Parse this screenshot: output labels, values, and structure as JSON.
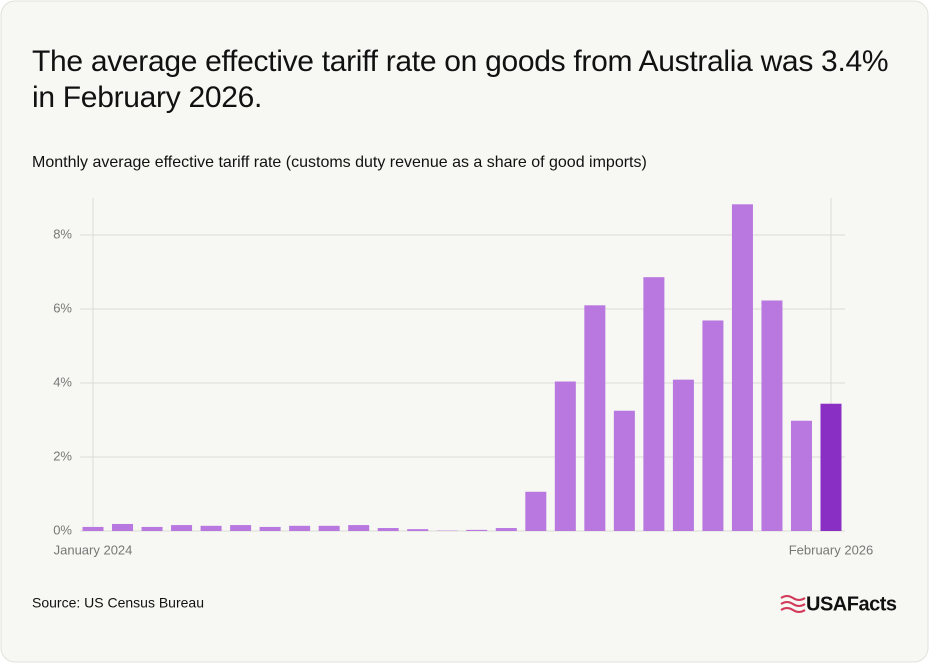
{
  "chart_data": {
    "type": "bar",
    "title": "The average effective tariff rate on goods from Australia was 3.4% in February 2026.",
    "subtitle": "Monthly average effective tariff rate (customs duty revenue as a share of good imports)",
    "source": "Source: US Census Bureau",
    "brand": "USAFacts",
    "categories": [
      "January 2024",
      null,
      null,
      null,
      null,
      null,
      null,
      null,
      null,
      null,
      null,
      null,
      null,
      null,
      null,
      null,
      null,
      null,
      null,
      null,
      null,
      null,
      null,
      null,
      null,
      "February 2026"
    ],
    "values": [
      0.11,
      0.19,
      0.11,
      0.16,
      0.14,
      0.16,
      0.11,
      0.14,
      0.14,
      0.16,
      0.08,
      0.05,
      0.01,
      0.03,
      0.08,
      1.06,
      4.04,
      6.1,
      3.25,
      6.86,
      4.09,
      5.69,
      8.83,
      6.23,
      2.98,
      3.44
    ],
    "colors": [
      "#b878e0",
      "#b878e0",
      "#b878e0",
      "#b878e0",
      "#b878e0",
      "#b878e0",
      "#b878e0",
      "#b878e0",
      "#b878e0",
      "#b878e0",
      "#b878e0",
      "#b878e0",
      "#b878e0",
      "#b878e0",
      "#b878e0",
      "#b878e0",
      "#b878e0",
      "#b878e0",
      "#b878e0",
      "#b878e0",
      "#b878e0",
      "#b878e0",
      "#b878e0",
      "#b878e0",
      "#b878e0",
      "#8a2fc4"
    ],
    "ylim": [
      0,
      9
    ],
    "yticks": [
      {
        "value": 0,
        "label": "0%"
      },
      {
        "value": 2,
        "label": "2%"
      },
      {
        "value": 4,
        "label": "4%"
      },
      {
        "value": 6,
        "label": "6%"
      },
      {
        "value": 8,
        "label": "8%"
      }
    ],
    "grid": true
  }
}
